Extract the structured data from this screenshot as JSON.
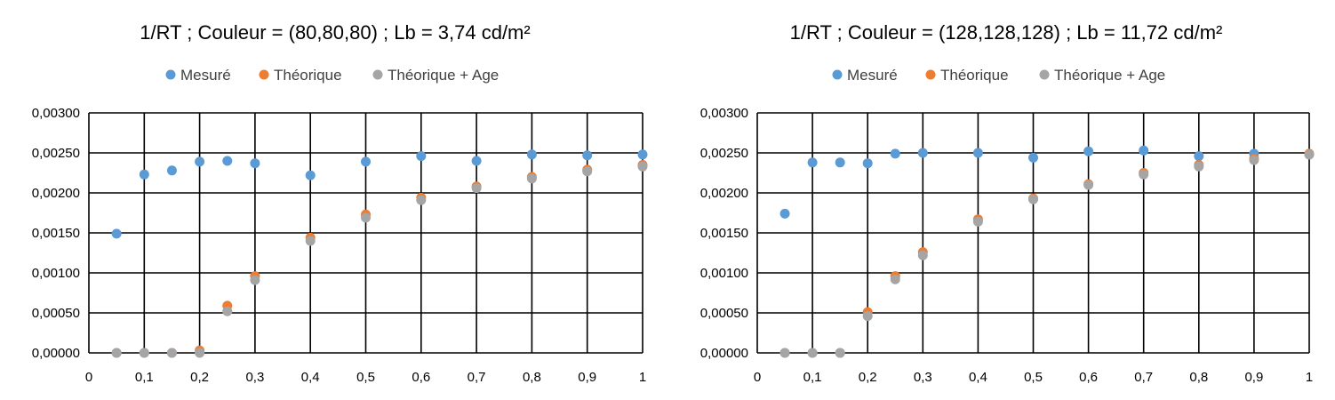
{
  "chart_data": [
    {
      "type": "scatter",
      "title": "1/RT ; Couleur = (80,80,80) ; Lb = 3,74 cd/m²",
      "xlim": [
        0,
        1
      ],
      "ylim": [
        0,
        0.003
      ],
      "x_ticks": [
        "0",
        "0,1",
        "0,2",
        "0,3",
        "0,4",
        "0,5",
        "0,6",
        "0,7",
        "0,8",
        "0,9",
        "1"
      ],
      "y_ticks": [
        "0,00000",
        "0,00050",
        "0,00100",
        "0,00150",
        "0,00200",
        "0,00250",
        "0,00300"
      ],
      "grid": true,
      "legend_position": "top",
      "x": [
        0.05,
        0.1,
        0.15,
        0.2,
        0.25,
        0.3,
        0.4,
        0.5,
        0.6,
        0.7,
        0.8,
        0.9,
        1.0
      ],
      "series": [
        {
          "name": "Mesuré",
          "color": "#5B9BD5",
          "values": [
            0.00149,
            0.00223,
            0.00228,
            0.00239,
            0.0024,
            0.00237,
            0.00222,
            0.00239,
            0.00246,
            0.0024,
            0.00248,
            0.00247,
            0.00248
          ]
        },
        {
          "name": "Théorique",
          "color": "#ED7D31",
          "values": [
            0.0,
            0.0,
            0.0,
            3e-05,
            0.00059,
            0.00096,
            0.00144,
            0.00173,
            0.00194,
            0.00208,
            0.0022,
            0.00229,
            0.00235
          ]
        },
        {
          "name": "Théorique + Age",
          "color": "#A5A5A5",
          "values": [
            0.0,
            0.0,
            0.0,
            0.0,
            0.00052,
            0.00091,
            0.0014,
            0.00169,
            0.00191,
            0.00206,
            0.00218,
            0.00227,
            0.00233
          ]
        }
      ]
    },
    {
      "type": "scatter",
      "title": "1/RT ; Couleur = (128,128,128) ; Lb = 11,72 cd/m²",
      "xlim": [
        0,
        1
      ],
      "ylim": [
        0,
        0.003
      ],
      "x_ticks": [
        "0",
        "0,1",
        "0,2",
        "0,3",
        "0,4",
        "0,5",
        "0,6",
        "0,7",
        "0,8",
        "0,9",
        "1"
      ],
      "y_ticks": [
        "0,00000",
        "0,00050",
        "0,00100",
        "0,00150",
        "0,00200",
        "0,00250",
        "0,00300"
      ],
      "grid": true,
      "legend_position": "top",
      "x": [
        0.05,
        0.1,
        0.15,
        0.2,
        0.25,
        0.3,
        0.4,
        0.5,
        0.6,
        0.7,
        0.8,
        0.9,
        1.0
      ],
      "series": [
        {
          "name": "Mesuré",
          "color": "#5B9BD5",
          "values": [
            0.00174,
            0.00238,
            0.00238,
            0.00237,
            0.00249,
            0.0025,
            0.0025,
            0.00244,
            0.00252,
            0.00253,
            0.00246,
            0.00249,
            0.00248
          ]
        },
        {
          "name": "Théorique",
          "color": "#ED7D31",
          "values": [
            0.0,
            0.0,
            0.0,
            0.00051,
            0.00096,
            0.00126,
            0.00167,
            0.00193,
            0.00211,
            0.00225,
            0.00235,
            0.00243,
            0.00249
          ]
        },
        {
          "name": "Théorique + Age",
          "color": "#A5A5A5",
          "values": [
            0.0,
            0.0,
            0.0,
            0.00046,
            0.00092,
            0.00122,
            0.00164,
            0.00192,
            0.0021,
            0.00223,
            0.00233,
            0.00241,
            0.00248
          ]
        }
      ]
    }
  ]
}
